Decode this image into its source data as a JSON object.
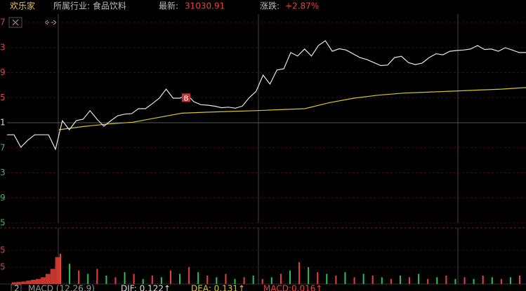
{
  "header": {
    "name": "欢乐家",
    "industry": "所属行业: 食品饮料",
    "latest_label": "最新:",
    "latest": "31030.91",
    "change_label": "涨跌:",
    "change": "+2.87%"
  },
  "chart_data": {
    "type": "line",
    "ylim": [
      0,
      8
    ],
    "yticks": [
      {
        "value": 0,
        "label": "5"
      },
      {
        "value": 1,
        "label": "9"
      },
      {
        "value": 2,
        "label": "3"
      },
      {
        "value": 3,
        "label": "7"
      },
      {
        "value": 4,
        "label": "1"
      },
      {
        "value": 5,
        "label": "5"
      },
      {
        "value": 6,
        "label": "9"
      },
      {
        "value": 7,
        "label": "3"
      },
      {
        "value": 8,
        "label": "7"
      }
    ],
    "series": [
      {
        "name": "price",
        "color": "#e6e6e6",
        "values": [
          3.52,
          3.52,
          3.02,
          3.3,
          3.52,
          3.52,
          3.52,
          2.94,
          4.08,
          3.72,
          4.08,
          4.14,
          4.48,
          4.14,
          3.86,
          4.08,
          4.28,
          4.34,
          4.36,
          4.56,
          4.56,
          4.76,
          4.98,
          5.34,
          4.98,
          4.98,
          5.12,
          4.84,
          4.72,
          4.7,
          4.66,
          4.6,
          4.62,
          4.58,
          4.66,
          5.0,
          5.25,
          5.9,
          5.54,
          6.1,
          6.15,
          6.8,
          6.66,
          6.94,
          6.66,
          7.08,
          7.27,
          6.85,
          6.95,
          6.9,
          6.75,
          6.6,
          6.52,
          6.4,
          6.28,
          6.3,
          6.6,
          6.65,
          6.4,
          6.32,
          6.38,
          6.6,
          6.75,
          6.71,
          6.85,
          6.88,
          6.9,
          6.94,
          7.08,
          6.92,
          6.94,
          6.85,
          6.99,
          6.9,
          6.8,
          6.8
        ]
      },
      {
        "name": "average",
        "color": "#d8c62a",
        "values": [
          3.72,
          3.85,
          3.95,
          4.02,
          4.2,
          4.38,
          4.42,
          4.45,
          4.48,
          4.52,
          4.56,
          4.8,
          4.98,
          5.1,
          5.18,
          5.22,
          5.26,
          5.3,
          5.34,
          5.4
        ]
      }
    ],
    "marker": {
      "text": "B",
      "at": 5.0
    },
    "volume": {
      "ylim": [
        0,
        3
      ],
      "yticks": [
        {
          "value": 1,
          "label": "5"
        },
        {
          "value": 2,
          "label": "5"
        }
      ],
      "pre_values": [
        0.1,
        0.12,
        0.15,
        0.2,
        0.25,
        0.3,
        0.4,
        0.6,
        0.9,
        1.6
      ],
      "values": [
        1.8,
        1.2,
        0.8,
        0.6,
        0.9,
        0.5,
        0.4,
        0.7,
        0.6,
        0.3,
        0.5,
        0.4,
        0.8,
        0.6,
        1.0,
        0.7,
        0.5,
        0.4,
        0.6,
        0.3,
        0.4,
        0.5,
        0.3,
        0.4,
        0.6,
        0.8,
        1.3,
        1.0,
        0.7,
        0.6,
        0.5,
        0.7,
        0.4,
        0.6,
        0.5,
        0.4,
        0.3,
        0.5,
        0.4,
        0.6,
        0.3,
        0.4,
        0.5,
        0.3,
        0.4,
        0.3,
        0.5,
        0.4,
        0.3,
        0.4,
        0.5
      ],
      "up_color": "#e8403a",
      "down_color": "#2fbf5a"
    }
  },
  "footer": {
    "pane": "2",
    "indicator": "MACD (12,26,9)",
    "dif": "DIF: 0.122↑",
    "dea": "DEA: 0.131↑",
    "macd": "MACD:0.016↑"
  }
}
